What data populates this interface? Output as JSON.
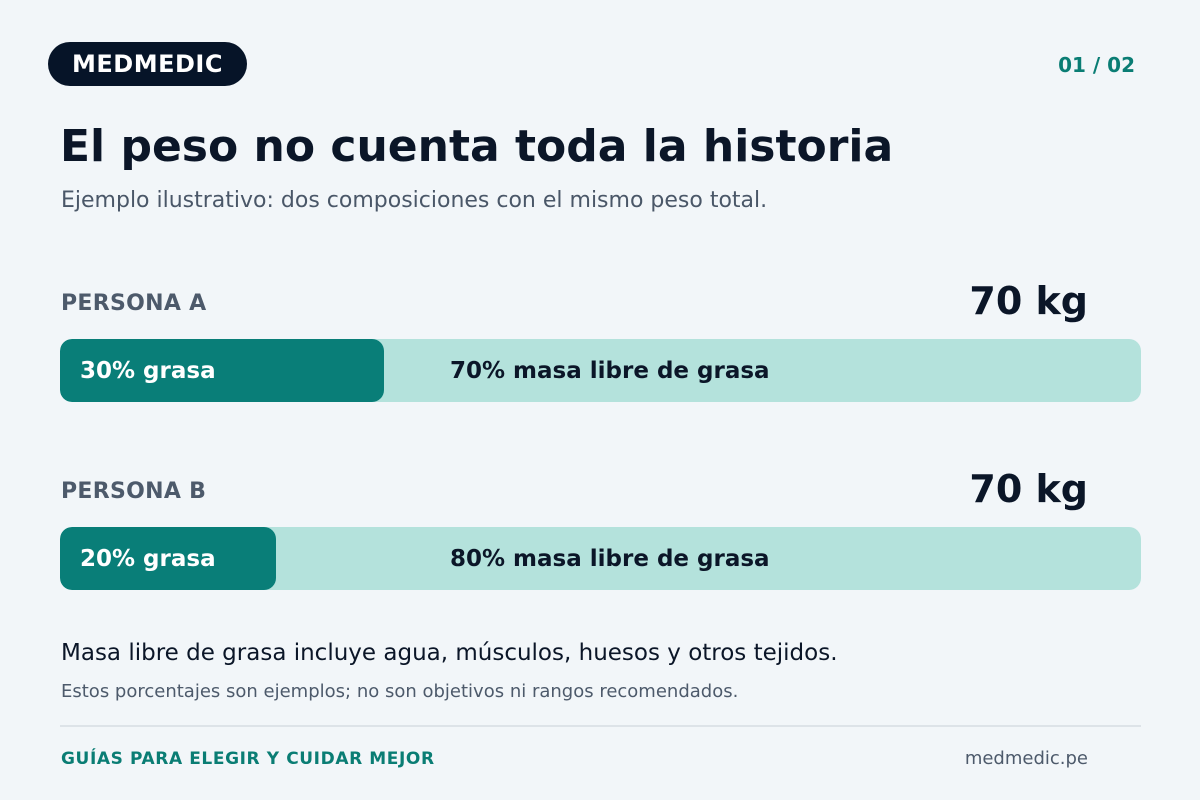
{
  "header": {
    "brand": "MEDMEDIC",
    "page_indicator": "01 / 02"
  },
  "title": "El peso no cuenta toda la historia",
  "subtitle": "Ejemplo ilustrativo: dos composiciones con el mismo peso total.",
  "persons": [
    {
      "label": "PERSONA A",
      "weight": "70 kg",
      "fat_percent": 30,
      "fat_label": "30% grasa",
      "lean_label": "70% masa libre de grasa"
    },
    {
      "label": "PERSONA B",
      "weight": "70 kg",
      "fat_percent": 20,
      "fat_label": "20% grasa",
      "lean_label": "80% masa libre de grasa"
    }
  ],
  "note": "Masa libre de grasa incluye agua, músculos, huesos y otros tejidos.",
  "disclaimer": "Estos porcentajes son ejemplos; no son objetivos ni rangos recomendados.",
  "footer": {
    "tagline": "GUÍAS PARA ELEGIR Y CUIDAR MEJOR",
    "website": "medmedic.pe"
  },
  "colors": {
    "background": "#f2f6f9",
    "brand_pill": "#061428",
    "accent_teal": "#097e78",
    "bar_light": "#b4e2dc"
  }
}
